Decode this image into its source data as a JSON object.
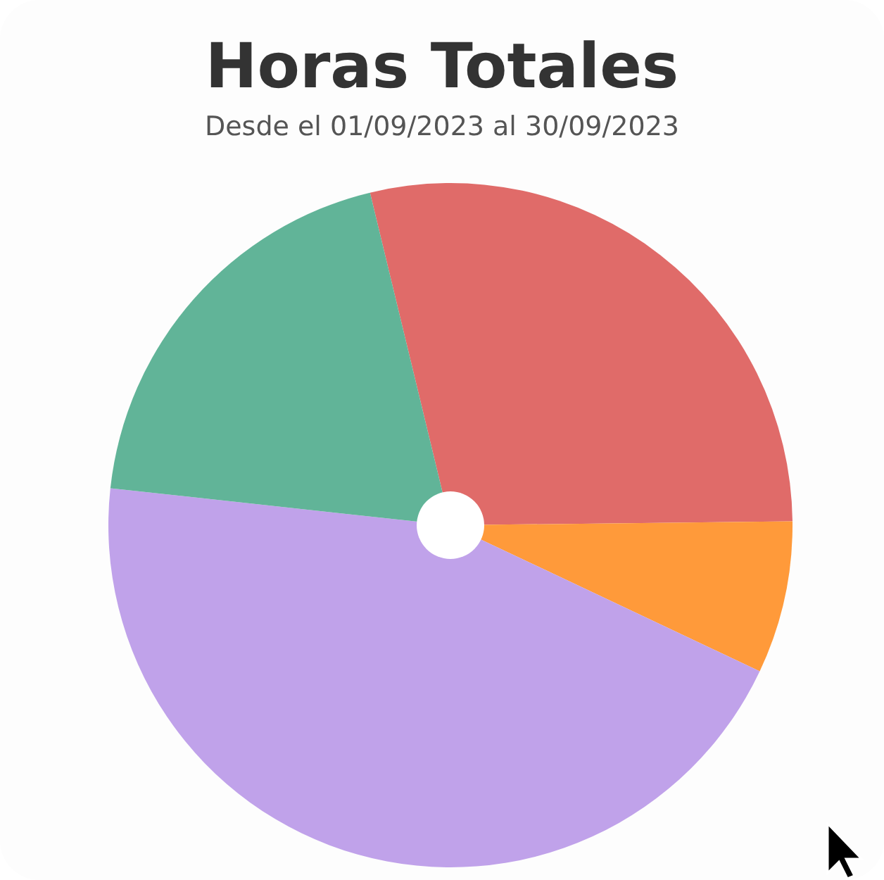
{
  "chart_data": {
    "type": "pie",
    "title": "Horas Totales",
    "subtitle": "Desde el 01/09/2023 al 30/09/2023",
    "categories": [
      null,
      null,
      null,
      null
    ],
    "values": [
      28.6,
      7.2,
      44.7,
      19.5
    ],
    "colors": [
      "#e06b69",
      "#ff9a3a",
      "#c0a2ea",
      "#61b498"
    ]
  }
}
